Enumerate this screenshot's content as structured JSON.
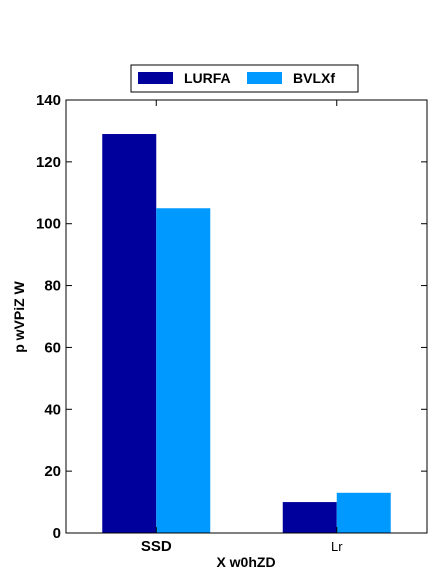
{
  "chart_data": {
    "type": "bar",
    "categories": [
      "SSD",
      "Lr"
    ],
    "category_label_bold": [
      true,
      false
    ],
    "series": [
      {
        "name": "LURFA",
        "values": [
          129,
          10
        ],
        "color": "#00009c"
      },
      {
        "name": "BVLXf",
        "values": [
          105,
          13
        ],
        "color": "#0099ff"
      }
    ],
    "xlabel": "X w0hZD",
    "ylabel": "p wVPiZ W",
    "ylim": [
      0,
      140
    ],
    "yticks": [
      0,
      20,
      40,
      60,
      80,
      100,
      120,
      140
    ],
    "grid": false,
    "legend_position": "top-center"
  }
}
